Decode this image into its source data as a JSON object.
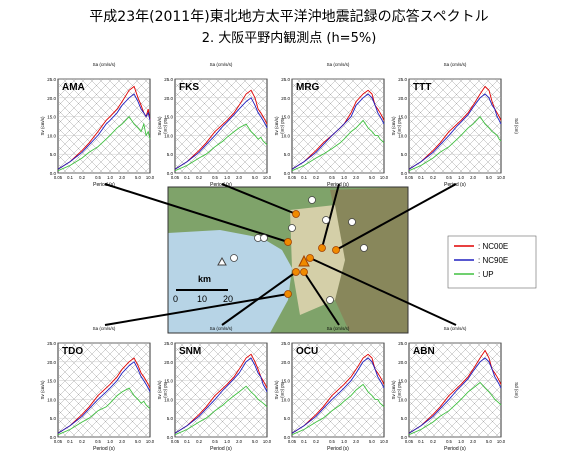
{
  "title_line1": "平成23年(2011年)東北地方太平洋沖地震記録の応答スペクトル",
  "title_line2": "2. 大阪平野内観測点 (h=5%)",
  "legend": [
    {
      "label": ": NC00E",
      "color": "#e00000"
    },
    {
      "label": ": NC90E",
      "color": "#2020c0"
    },
    {
      "label": ": UP",
      "color": "#40c040"
    }
  ],
  "map": {
    "scale_label": "km",
    "scale_ticks": [
      "0",
      "10",
      "20"
    ]
  },
  "chart_data": [
    {
      "type": "line",
      "station": "AMA",
      "ylabel": "Sv (cm/s)",
      "xlabel": "Period (s)",
      "top_axis_label": "Sa (cm/s/s)",
      "right_axis_label": "Sd (cm)",
      "xscale": "log",
      "xlim": [
        0.05,
        10
      ],
      "ylim": [
        0,
        25
      ],
      "yticks": [
        "0.0",
        "5.0",
        "10.0",
        "15.0",
        "20.0",
        "25.0"
      ],
      "xticks": [
        "0.05",
        "0.1",
        "0.2",
        "0.5",
        "1.0",
        "2.0",
        "5.0",
        "10.0"
      ],
      "x": [
        0.05,
        0.1,
        0.2,
        0.3,
        0.5,
        0.8,
        1,
        1.5,
        2,
        3,
        4,
        5,
        6,
        7,
        8,
        9,
        10
      ],
      "series": [
        {
          "name": "NC00E",
          "values": [
            1,
            3,
            6,
            8,
            11,
            14,
            15,
            17,
            19,
            22,
            23,
            20,
            18,
            16,
            15,
            17,
            14
          ]
        },
        {
          "name": "NC90E",
          "values": [
            1,
            3,
            5.5,
            7.5,
            10,
            13,
            14,
            16,
            18,
            20,
            21,
            19,
            17,
            16,
            15,
            16,
            14
          ]
        },
        {
          "name": "UP",
          "values": [
            0.6,
            2,
            4,
            5.5,
            7,
            9,
            10,
            12,
            13,
            15,
            13,
            12,
            11,
            13,
            10,
            11,
            9
          ]
        }
      ]
    },
    {
      "type": "line",
      "station": "FKS",
      "ylabel": "Sv (cm/s)",
      "xlabel": "Period (s)",
      "top_axis_label": "Sa (cm/s/s)",
      "right_axis_label": "Sd (cm)",
      "xscale": "log",
      "xlim": [
        0.05,
        10
      ],
      "ylim": [
        0,
        25
      ],
      "yticks": [
        "0.0",
        "5.0",
        "10.0",
        "15.0",
        "20.0",
        "25.0"
      ],
      "xticks": [
        "0.05",
        "0.1",
        "0.2",
        "0.5",
        "1.0",
        "2.0",
        "5.0",
        "10.0"
      ],
      "x": [
        0.05,
        0.1,
        0.2,
        0.3,
        0.5,
        0.8,
        1,
        1.5,
        2,
        3,
        4,
        5,
        6,
        7,
        8,
        9,
        10
      ],
      "series": [
        {
          "name": "NC00E",
          "values": [
            1,
            3,
            6,
            8,
            11,
            13,
            14,
            16,
            18,
            21,
            22,
            20,
            17,
            16,
            15,
            14,
            13
          ]
        },
        {
          "name": "NC90E",
          "values": [
            1,
            3,
            5.5,
            7.5,
            10,
            12.5,
            13.5,
            15.5,
            17,
            19,
            20,
            18,
            16,
            15,
            14,
            13,
            12
          ]
        },
        {
          "name": "UP",
          "values": [
            0.6,
            2,
            4,
            5,
            7,
            8.5,
            9.5,
            11,
            12,
            13,
            11,
            10,
            9,
            9.5,
            8.5,
            8,
            7.5
          ]
        }
      ]
    },
    {
      "type": "line",
      "station": "MRG",
      "ylabel": "Sv (cm/s)",
      "xlabel": "Period (s)",
      "top_axis_label": "Sa (cm/s/s)",
      "right_axis_label": "Sd (cm)",
      "xscale": "log",
      "xlim": [
        0.05,
        10
      ],
      "ylim": [
        0,
        25
      ],
      "yticks": [
        "0.0",
        "5.0",
        "10.0",
        "15.0",
        "20.0",
        "25.0"
      ],
      "xticks": [
        "0.05",
        "0.1",
        "0.2",
        "0.5",
        "1.0",
        "2.0",
        "5.0",
        "10.0"
      ],
      "x": [
        0.05,
        0.1,
        0.2,
        0.3,
        0.5,
        0.8,
        1,
        1.5,
        2,
        3,
        4,
        5,
        6,
        7,
        8,
        9,
        10
      ],
      "series": [
        {
          "name": "NC00E",
          "values": [
            1,
            3,
            6,
            8,
            10,
            12,
            13,
            16,
            19,
            21,
            22,
            21,
            18,
            17,
            16,
            15,
            14
          ]
        },
        {
          "name": "NC90E",
          "values": [
            1,
            3,
            5.5,
            7.5,
            10,
            12,
            13,
            15,
            18,
            20,
            21,
            20,
            18,
            16,
            15,
            14,
            13
          ]
        },
        {
          "name": "UP",
          "values": [
            0.6,
            2,
            4,
            5,
            6.5,
            8,
            9,
            11,
            12,
            14,
            12,
            11,
            10,
            10,
            9,
            8.5,
            8
          ]
        }
      ]
    },
    {
      "type": "line",
      "station": "TTT",
      "ylabel": "Sv (cm/s)",
      "xlabel": "Period (s)",
      "top_axis_label": "Sa (cm/s/s)",
      "right_axis_label": "Sd (cm)",
      "xscale": "log",
      "xlim": [
        0.05,
        10
      ],
      "ylim": [
        0,
        25
      ],
      "yticks": [
        "0.0",
        "5.0",
        "10.0",
        "15.0",
        "20.0",
        "25.0"
      ],
      "xticks": [
        "0.05",
        "0.1",
        "0.2",
        "0.5",
        "1.0",
        "2.0",
        "5.0",
        "10.0"
      ],
      "x": [
        0.05,
        0.1,
        0.2,
        0.3,
        0.5,
        0.8,
        1,
        1.5,
        2,
        3,
        4,
        5,
        6,
        7,
        8,
        9,
        10
      ],
      "series": [
        {
          "name": "NC00E",
          "values": [
            1,
            3,
            6,
            8,
            11,
            13,
            14,
            16,
            18,
            21,
            23,
            22,
            19,
            17,
            16,
            15,
            14
          ]
        },
        {
          "name": "NC90E",
          "values": [
            1,
            3,
            5.5,
            7.5,
            10,
            12.5,
            13.5,
            15.5,
            17.5,
            20,
            21,
            20,
            18,
            17,
            15,
            14,
            13
          ]
        },
        {
          "name": "UP",
          "values": [
            0.6,
            2,
            4,
            5.5,
            7,
            9,
            10,
            12,
            13,
            15,
            13,
            12,
            11,
            10.5,
            10,
            9,
            8.5
          ]
        }
      ]
    },
    {
      "type": "line",
      "station": "TDO",
      "ylabel": "Sv (cm/s)",
      "xlabel": "Period (s)",
      "top_axis_label": "Sa (cm/s/s)",
      "right_axis_label": "Sd (cm)",
      "xscale": "log",
      "xlim": [
        0.05,
        10
      ],
      "ylim": [
        0,
        25
      ],
      "yticks": [
        "0.0",
        "5.0",
        "10.0",
        "15.0",
        "20.0",
        "25.0"
      ],
      "xticks": [
        "0.05",
        "0.1",
        "0.2",
        "0.5",
        "1.0",
        "2.0",
        "5.0",
        "10.0"
      ],
      "x": [
        0.05,
        0.1,
        0.2,
        0.3,
        0.5,
        0.8,
        1,
        1.5,
        2,
        3,
        4,
        5,
        6,
        7,
        8,
        9,
        10
      ],
      "series": [
        {
          "name": "NC00E",
          "values": [
            1,
            3,
            6,
            8,
            11,
            13,
            14,
            16,
            18,
            20,
            21,
            19,
            17,
            16,
            15,
            14,
            13
          ]
        },
        {
          "name": "NC90E",
          "values": [
            1,
            3,
            5.5,
            7.5,
            10,
            12,
            13,
            15,
            17,
            19,
            20,
            18,
            16,
            15,
            14,
            13,
            12
          ]
        },
        {
          "name": "UP",
          "values": [
            0.6,
            2,
            4,
            5,
            7,
            8,
            9,
            11,
            12,
            13,
            11,
            10,
            9,
            9.5,
            8.5,
            8,
            7.5
          ]
        }
      ]
    },
    {
      "type": "line",
      "station": "SNM",
      "ylabel": "Sv (cm/s)",
      "xlabel": "Period (s)",
      "top_axis_label": "Sa (cm/s/s)",
      "right_axis_label": "Sd (cm)",
      "xscale": "log",
      "xlim": [
        0.05,
        10
      ],
      "ylim": [
        0,
        25
      ],
      "yticks": [
        "0.0",
        "5.0",
        "10.0",
        "15.0",
        "20.0",
        "25.0"
      ],
      "xticks": [
        "0.05",
        "0.1",
        "0.2",
        "0.5",
        "1.0",
        "2.0",
        "5.0",
        "10.0"
      ],
      "x": [
        0.05,
        0.1,
        0.2,
        0.3,
        0.5,
        0.8,
        1,
        1.5,
        2,
        3,
        4,
        5,
        6,
        7,
        8,
        9,
        10
      ],
      "series": [
        {
          "name": "NC00E",
          "values": [
            1,
            3,
            6,
            8,
            11,
            13,
            14,
            16,
            18,
            21,
            22,
            20,
            18,
            16,
            15,
            14,
            13
          ]
        },
        {
          "name": "NC90E",
          "values": [
            1,
            3,
            5.5,
            7.5,
            10,
            12.5,
            13.5,
            15.5,
            17,
            20,
            21,
            19,
            17,
            16,
            14,
            13,
            12
          ]
        },
        {
          "name": "UP",
          "values": [
            0.6,
            2,
            4,
            5,
            7,
            8.5,
            9.5,
            11,
            12,
            13.5,
            12,
            11,
            10,
            9.5,
            9,
            8.5,
            8
          ]
        }
      ]
    },
    {
      "type": "line",
      "station": "OCU",
      "ylabel": "Sv (cm/s)",
      "xlabel": "Period (s)",
      "top_axis_label": "Sa (cm/s/s)",
      "right_axis_label": "Sd (cm)",
      "xscale": "log",
      "xlim": [
        0.05,
        10
      ],
      "ylim": [
        0,
        25
      ],
      "yticks": [
        "0.0",
        "5.0",
        "10.0",
        "15.0",
        "20.0",
        "25.0"
      ],
      "xticks": [
        "0.05",
        "0.1",
        "0.2",
        "0.5",
        "1.0",
        "2.0",
        "5.0",
        "10.0"
      ],
      "x": [
        0.05,
        0.1,
        0.2,
        0.3,
        0.5,
        0.8,
        1,
        1.5,
        2,
        3,
        4,
        5,
        6,
        7,
        8,
        9,
        10
      ],
      "series": [
        {
          "name": "NC00E",
          "values": [
            1,
            3,
            6,
            8,
            11,
            13,
            14,
            16,
            18,
            21,
            22,
            21,
            18,
            17,
            16,
            15,
            14
          ]
        },
        {
          "name": "NC90E",
          "values": [
            1,
            3,
            5.5,
            7.5,
            10,
            12,
            13,
            15,
            17,
            20,
            21,
            20,
            18,
            16,
            15,
            14,
            13
          ]
        },
        {
          "name": "UP",
          "values": [
            0.6,
            2,
            4,
            5,
            7,
            8.5,
            9.5,
            11,
            12.5,
            14,
            12,
            11,
            10,
            10,
            9,
            8.5,
            8
          ]
        }
      ]
    },
    {
      "type": "line",
      "station": "ABN",
      "ylabel": "Sv (cm/s)",
      "xlabel": "Period (s)",
      "top_axis_label": "Sa (cm/s/s)",
      "right_axis_label": "Sd (cm)",
      "xscale": "log",
      "xlim": [
        0.05,
        10
      ],
      "ylim": [
        0,
        25
      ],
      "yticks": [
        "0.0",
        "5.0",
        "10.0",
        "15.0",
        "20.0",
        "25.0"
      ],
      "xticks": [
        "0.05",
        "0.1",
        "0.2",
        "0.5",
        "1.0",
        "2.0",
        "5.0",
        "10.0"
      ],
      "x": [
        0.05,
        0.1,
        0.2,
        0.3,
        0.5,
        0.8,
        1,
        1.5,
        2,
        3,
        4,
        5,
        6,
        7,
        8,
        9,
        10
      ],
      "series": [
        {
          "name": "NC00E",
          "values": [
            1,
            3,
            6,
            8,
            11,
            13,
            14,
            16,
            18,
            21,
            23,
            21,
            18,
            17,
            16,
            15,
            14
          ]
        },
        {
          "name": "NC90E",
          "values": [
            1,
            3,
            5.5,
            7.5,
            10,
            12.5,
            13.5,
            15.5,
            17.5,
            20,
            21,
            20,
            18,
            16,
            15,
            14,
            13
          ]
        },
        {
          "name": "UP",
          "values": [
            0.6,
            2,
            4,
            5.5,
            7,
            9,
            10,
            12,
            13,
            14.5,
            13,
            12,
            11,
            10,
            9.5,
            9,
            8.5
          ]
        }
      ]
    }
  ]
}
